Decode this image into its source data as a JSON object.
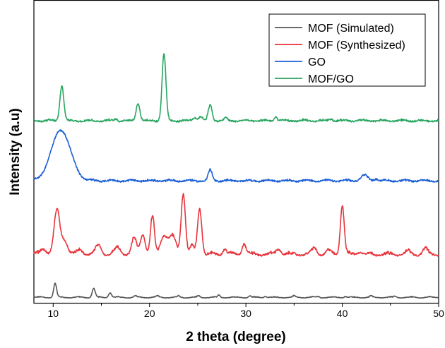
{
  "chart_data": {
    "type": "line",
    "title": "",
    "xlabel": "2 theta (degree)",
    "ylabel": "Intensity (a.u)",
    "xlim": [
      8,
      50
    ],
    "x_ticks": [
      10,
      20,
      30,
      40,
      50
    ],
    "y_ticks_shown": false,
    "grid": false,
    "legend_position": "top-right",
    "series": [
      {
        "name": "MOF (Simulated)",
        "color": "#555555",
        "offset": 0,
        "baseline": 3,
        "peaks": [
          {
            "x": 10.2,
            "h": 20,
            "w": 0.15
          },
          {
            "x": 14.2,
            "h": 13,
            "w": 0.15
          },
          {
            "x": 15.9,
            "h": 7,
            "w": 0.15
          },
          {
            "x": 18.5,
            "h": 2,
            "w": 0.12
          },
          {
            "x": 20.8,
            "h": 2,
            "w": 0.12
          },
          {
            "x": 23.0,
            "h": 2,
            "w": 0.12
          },
          {
            "x": 25.1,
            "h": 2,
            "w": 0.12
          },
          {
            "x": 27.2,
            "h": 3,
            "w": 0.12
          },
          {
            "x": 30.4,
            "h": 2,
            "w": 0.12
          },
          {
            "x": 32.0,
            "h": 2,
            "w": 0.12
          },
          {
            "x": 35.0,
            "h": 2,
            "w": 0.12
          },
          {
            "x": 37.5,
            "h": 1.5,
            "w": 0.12
          },
          {
            "x": 40.3,
            "h": 1.5,
            "w": 0.12
          },
          {
            "x": 43.0,
            "h": 2,
            "w": 0.12
          },
          {
            "x": 45.5,
            "h": 1.5,
            "w": 0.12
          }
        ]
      },
      {
        "name": "MOF (Synthesized)",
        "color": "#e8333b",
        "offset": 60,
        "baseline": 8,
        "peaks": [
          {
            "x": 9.0,
            "h": 8,
            "w": 0.3
          },
          {
            "x": 10.4,
            "h": 62,
            "w": 0.3
          },
          {
            "x": 11.2,
            "h": 20,
            "w": 0.3
          },
          {
            "x": 12.8,
            "h": 6,
            "w": 0.3
          },
          {
            "x": 14.7,
            "h": 12,
            "w": 0.3
          },
          {
            "x": 16.7,
            "h": 9,
            "w": 0.3
          },
          {
            "x": 18.4,
            "h": 22,
            "w": 0.25
          },
          {
            "x": 19.3,
            "h": 29,
            "w": 0.25
          },
          {
            "x": 20.3,
            "h": 53,
            "w": 0.2
          },
          {
            "x": 21.5,
            "h": 27,
            "w": 0.35
          },
          {
            "x": 22.4,
            "h": 25,
            "w": 0.35
          },
          {
            "x": 23.5,
            "h": 87,
            "w": 0.22
          },
          {
            "x": 24.4,
            "h": 12,
            "w": 0.2
          },
          {
            "x": 25.2,
            "h": 65,
            "w": 0.22
          },
          {
            "x": 27.8,
            "h": 8,
            "w": 0.2
          },
          {
            "x": 29.8,
            "h": 16,
            "w": 0.2
          },
          {
            "x": 33.4,
            "h": 8,
            "w": 0.25
          },
          {
            "x": 37.1,
            "h": 9,
            "w": 0.25
          },
          {
            "x": 38.6,
            "h": 5,
            "w": 0.25
          },
          {
            "x": 40.0,
            "h": 70,
            "w": 0.2
          },
          {
            "x": 41.8,
            "h": 4,
            "w": 0.25
          },
          {
            "x": 46.8,
            "h": 4,
            "w": 0.25
          },
          {
            "x": 48.6,
            "h": 8,
            "w": 0.25
          }
        ]
      },
      {
        "name": "GO",
        "color": "#1a5fd6",
        "offset": 165,
        "baseline": 4,
        "peaks": [
          {
            "x": 10.8,
            "h": 72,
            "w": 1.0
          },
          {
            "x": 26.3,
            "h": 15,
            "w": 0.2
          },
          {
            "x": 42.3,
            "h": 8,
            "w": 0.35
          },
          {
            "x": 43.5,
            "h": 3,
            "w": 0.2
          }
        ]
      },
      {
        "name": "MOF/GO",
        "color": "#27a560",
        "offset": 250,
        "baseline": 4,
        "peaks": [
          {
            "x": 10.9,
            "h": 50,
            "w": 0.2
          },
          {
            "x": 16.5,
            "h": 3,
            "w": 0.15
          },
          {
            "x": 18.8,
            "h": 25,
            "w": 0.2
          },
          {
            "x": 21.5,
            "h": 95,
            "w": 0.2
          },
          {
            "x": 24.7,
            "h": 5,
            "w": 0.2
          },
          {
            "x": 25.3,
            "h": 6,
            "w": 0.2
          },
          {
            "x": 26.3,
            "h": 22,
            "w": 0.2
          },
          {
            "x": 27.9,
            "h": 4,
            "w": 0.15
          },
          {
            "x": 33.1,
            "h": 6,
            "w": 0.15
          },
          {
            "x": 38.8,
            "h": 3,
            "w": 0.2
          }
        ]
      }
    ]
  }
}
